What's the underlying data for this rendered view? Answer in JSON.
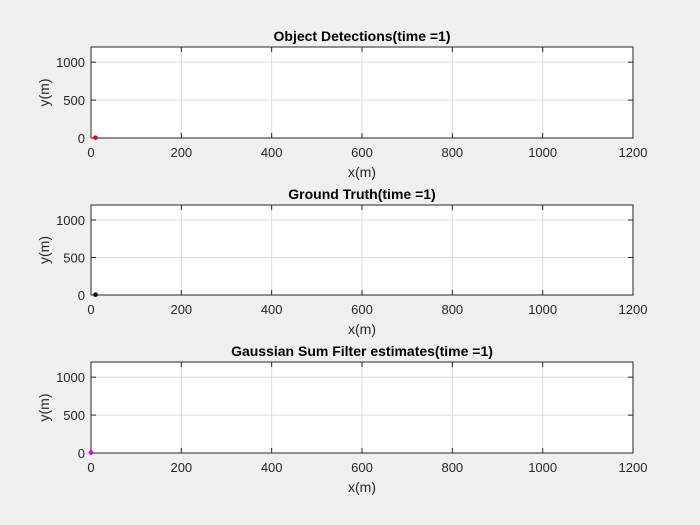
{
  "chart_data": [
    {
      "type": "scatter",
      "title": "Object Detections(time =1)",
      "xlabel": "x(m)",
      "ylabel": "y(m)",
      "xlim": [
        0,
        1200
      ],
      "ylim": [
        0,
        1200
      ],
      "xticks": [
        0,
        200,
        400,
        600,
        800,
        1000,
        1200
      ],
      "yticks": [
        0,
        500,
        1000
      ],
      "grid": true,
      "series": [
        {
          "color": "#e8000b",
          "points": [
            [
              10,
              5
            ]
          ]
        }
      ]
    },
    {
      "type": "scatter",
      "title": "Ground Truth(time =1)",
      "xlabel": "x(m)",
      "ylabel": "y(m)",
      "xlim": [
        0,
        1200
      ],
      "ylim": [
        0,
        1200
      ],
      "xticks": [
        0,
        200,
        400,
        600,
        800,
        1000,
        1200
      ],
      "yticks": [
        0,
        500,
        1000
      ],
      "grid": true,
      "series": [
        {
          "color": "#000000",
          "points": [
            [
              10,
              5
            ]
          ]
        }
      ]
    },
    {
      "type": "scatter",
      "title": "Gaussian Sum Filter estimates(time =1)",
      "xlabel": "x(m)",
      "ylabel": "y(m)",
      "xlim": [
        0,
        1200
      ],
      "ylim": [
        0,
        1200
      ],
      "xticks": [
        0,
        200,
        400,
        600,
        800,
        1000,
        1200
      ],
      "yticks": [
        0,
        500,
        1000
      ],
      "grid": true,
      "series": [
        {
          "color": "#e000e0",
          "points": [
            [
              0,
              5
            ]
          ]
        }
      ]
    }
  ]
}
